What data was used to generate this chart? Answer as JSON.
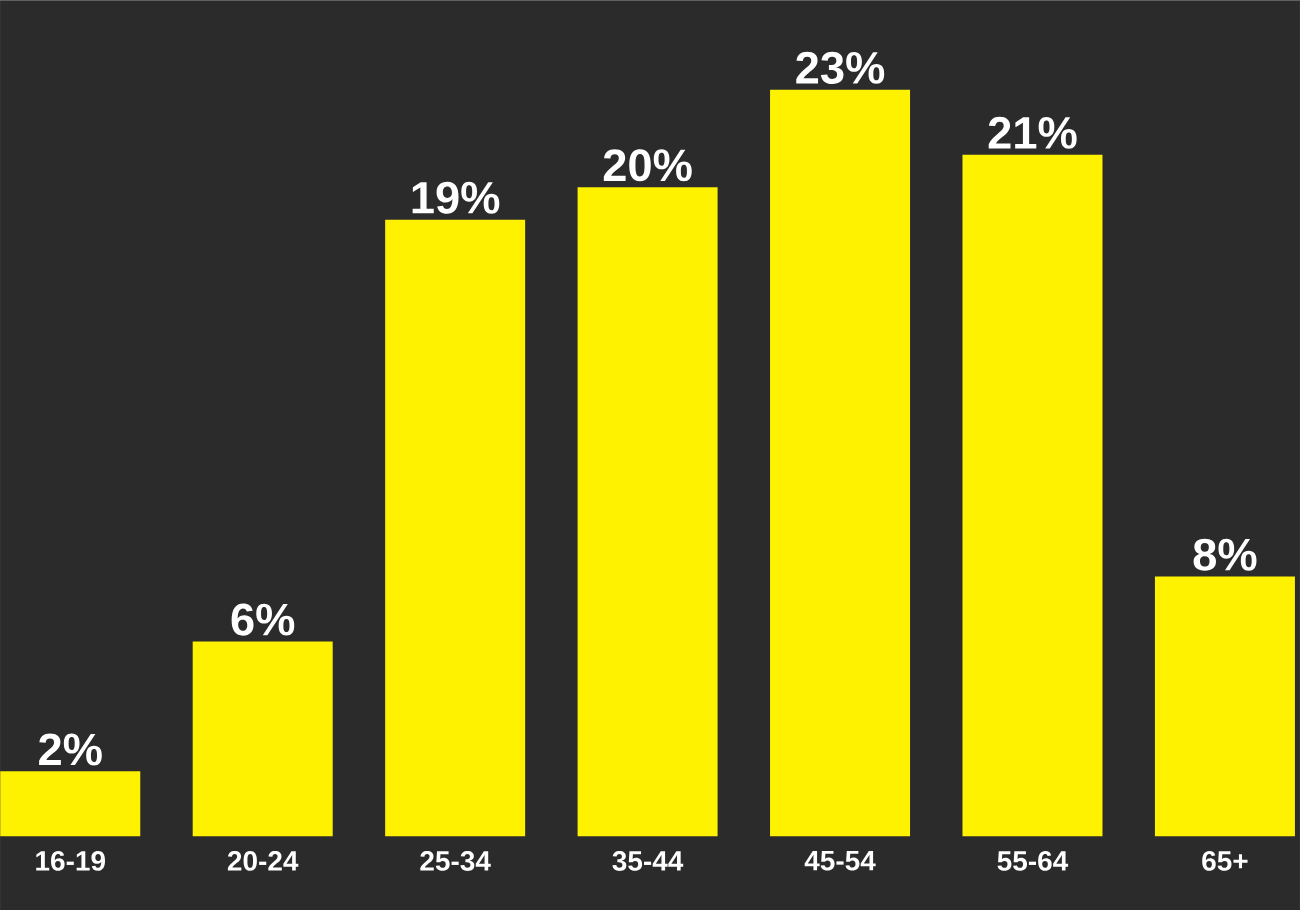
{
  "chart_data": {
    "type": "bar",
    "categories": [
      "16-19",
      "20-24",
      "25-34",
      "35-44",
      "45-54",
      "55-64",
      "65+"
    ],
    "values": [
      2,
      6,
      19,
      20,
      23,
      21,
      8
    ],
    "value_labels": [
      "2%",
      "6%",
      "19%",
      "20%",
      "23%",
      "21%",
      "8%"
    ],
    "color": "#fff200"
  }
}
